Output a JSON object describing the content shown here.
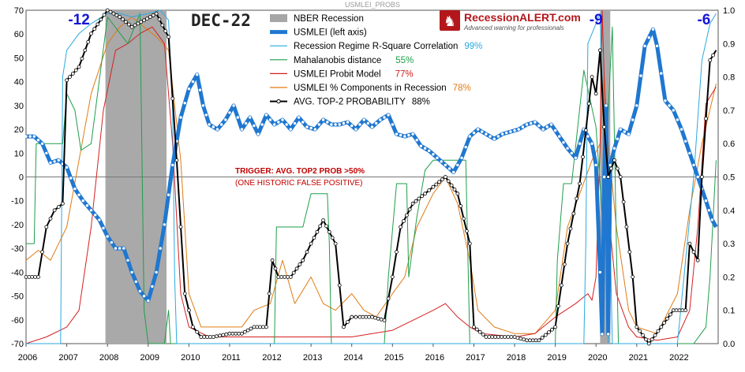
{
  "chart_data": {
    "type": "line",
    "title": "USMLEI_PROBS",
    "date_label": "DEC-22",
    "left_axis": {
      "range": [
        -70,
        70
      ],
      "ticks": [
        -70,
        -60,
        -50,
        -40,
        -30,
        -20,
        -10,
        0,
        10,
        20,
        30,
        40,
        50,
        60,
        70
      ]
    },
    "right_axis": {
      "range": [
        0,
        1.0
      ],
      "ticks": [
        "0.0",
        "0.1",
        "0.2",
        "0.3",
        "0.4",
        "0.5",
        "0.6",
        "0.7",
        "0.8",
        "0.9",
        "1.0"
      ]
    },
    "x_axis": {
      "range": [
        2006.0,
        2023.0
      ],
      "ticks": [
        "2006",
        "2007",
        "2008",
        "2009",
        "2010",
        "2011",
        "2012",
        "2013",
        "2014",
        "2015",
        "2016",
        "2017",
        "2018",
        "2019",
        "2020",
        "2021",
        "2022"
      ]
    },
    "recessions": [
      {
        "start": 2007.95,
        "end": 2009.45
      },
      {
        "start": 2020.1,
        "end": 2020.35
      }
    ],
    "big_labels": [
      {
        "text": "-12",
        "x": 2007.3,
        "color": "#1515d8"
      },
      {
        "text": "-9",
        "x": 2020.0,
        "color": "#1515d8"
      },
      {
        "text": "-6",
        "x": 2022.65,
        "color": "#1515d8"
      }
    ],
    "trigger": {
      "line1": "TRIGGER: AVG. TOP2 PROB >50%",
      "line2": "(ONE HISTORIC FALSE POSITIVE)",
      "color": "#c00000"
    },
    "brand": {
      "name": "RecessionALERT.com",
      "tagline": "Advanced warning for professionals"
    },
    "legend": [
      {
        "key": "nber",
        "label": "NBER Recession",
        "value": "",
        "color": "#a6a6a6",
        "value_color": "#000"
      },
      {
        "key": "usmlei",
        "label": "USMLEI (left axis)",
        "value": "",
        "color": "#1f77d0",
        "value_color": "#000"
      },
      {
        "key": "rsq",
        "label": "Recession Regime R-Square Correlation",
        "value": "99%",
        "color": "#2aa9e0",
        "value_color": "#2aa9e0"
      },
      {
        "key": "maha",
        "label": "Mahalanobis distance",
        "value": "55%",
        "color": "#1f9e4a",
        "value_color": "#1f9e4a"
      },
      {
        "key": "probit",
        "label": "USMLEI Probit Model",
        "value": "77%",
        "color": "#d42020",
        "value_color": "#d42020"
      },
      {
        "key": "comp",
        "label": "USMLEI % Components in Recession",
        "value": "78%",
        "color": "#e07b14",
        "value_color": "#e07b14"
      },
      {
        "key": "avg",
        "label": "AVG. TOP-2 PROBABILITY",
        "value": "88%",
        "color": "#000000",
        "value_color": "#000"
      }
    ],
    "series": [
      {
        "key": "usmlei",
        "axis": "left",
        "color": "#1f77d0",
        "x": [
          2006.0,
          2006.2,
          2006.4,
          2006.6,
          2006.8,
          2007.0,
          2007.2,
          2007.4,
          2007.6,
          2007.8,
          2008.0,
          2008.2,
          2008.4,
          2008.6,
          2008.8,
          2009.0,
          2009.2,
          2009.4,
          2009.6,
          2009.8,
          2010.0,
          2010.2,
          2010.35,
          2010.5,
          2010.7,
          2010.9,
          2011.1,
          2011.3,
          2011.5,
          2011.7,
          2011.9,
          2012.1,
          2012.3,
          2012.5,
          2012.7,
          2012.9,
          2013.1,
          2013.3,
          2013.5,
          2013.7,
          2013.9,
          2014.1,
          2014.3,
          2014.5,
          2014.7,
          2014.9,
          2015.1,
          2015.3,
          2015.5,
          2015.7,
          2015.9,
          2016.1,
          2016.3,
          2016.5,
          2016.7,
          2016.9,
          2017.1,
          2017.3,
          2017.5,
          2017.7,
          2017.9,
          2018.1,
          2018.3,
          2018.5,
          2018.7,
          2018.9,
          2019.1,
          2019.3,
          2019.5,
          2019.7,
          2019.9,
          2020.0,
          2020.1,
          2020.15,
          2020.2,
          2020.25,
          2020.3,
          2020.35,
          2020.45,
          2020.6,
          2020.8,
          2021.0,
          2021.2,
          2021.4,
          2021.5,
          2021.7,
          2021.9,
          2022.1,
          2022.3,
          2022.5,
          2022.7,
          2022.85,
          2022.95
        ],
        "y": [
          17,
          17,
          14,
          6,
          7,
          4,
          -5,
          -10,
          -14,
          -18,
          -25,
          -30,
          -30,
          -40,
          -48,
          -52,
          -40,
          -20,
          5,
          25,
          37,
          43,
          30,
          22,
          20,
          24,
          30,
          20,
          25,
          18,
          26,
          22,
          24,
          20,
          25,
          21,
          20,
          24,
          22,
          22,
          23,
          20,
          24,
          21,
          24,
          26,
          18,
          17,
          18,
          13,
          11,
          8,
          5,
          2,
          8,
          17,
          20,
          18,
          16,
          18,
          19,
          20,
          22,
          23,
          20,
          22,
          17,
          12,
          8,
          20,
          14,
          5,
          -40,
          -66,
          0,
          30,
          -66,
          5,
          12,
          20,
          18,
          30,
          55,
          62,
          55,
          32,
          28,
          20,
          10,
          0,
          -10,
          -18,
          -21
        ]
      },
      {
        "key": "rsq",
        "axis": "right",
        "color": "#2aa9e0",
        "x": [
          2006.0,
          2006.6,
          2006.85,
          2006.9,
          2007.0,
          2007.3,
          2007.6,
          2008.0,
          2008.3,
          2008.6,
          2009.0,
          2009.3,
          2009.5,
          2009.6,
          2009.65,
          2009.7,
          2013.0,
          2019.7,
          2019.75,
          2019.8,
          2020.0,
          2020.1,
          2020.2,
          2020.3,
          2020.35,
          2020.4,
          2020.7,
          2022.0,
          2022.4,
          2022.6,
          2022.8,
          2022.95
        ],
        "y": [
          0.0,
          0.0,
          0.0,
          0.8,
          0.88,
          0.93,
          0.96,
          0.99,
          0.99,
          0.98,
          0.99,
          1.0,
          0.97,
          0.7,
          0.2,
          0.0,
          0.0,
          0.0,
          0.3,
          0.9,
          0.96,
          0.99,
          0.6,
          0.0,
          0.3,
          0.0,
          0.0,
          0.0,
          0.5,
          0.85,
          0.96,
          0.99
        ]
      },
      {
        "key": "maha",
        "axis": "right",
        "color": "#1f9e4a",
        "x": [
          2006.0,
          2006.2,
          2006.25,
          2006.4,
          2006.9,
          2007.0,
          2007.2,
          2007.35,
          2007.6,
          2008.0,
          2008.5,
          2008.8,
          2008.9,
          2009.0,
          2009.3,
          2009.4,
          2009.5,
          2009.55,
          2009.6,
          2012.1,
          2012.15,
          2012.8,
          2013.0,
          2013.1,
          2013.2,
          2013.4,
          2013.45,
          2013.5,
          2014.5,
          2014.8,
          2014.9,
          2015.1,
          2015.35,
          2015.4,
          2015.6,
          2015.8,
          2016.0,
          2016.8,
          2016.9,
          2017.0,
          2019.0,
          2019.05,
          2019.2,
          2019.4,
          2019.7,
          2020.0,
          2020.2,
          2020.3,
          2020.4,
          2020.5,
          2020.55,
          2022.0,
          2022.4,
          2022.7,
          2022.8,
          2022.95
        ],
        "y": [
          0.3,
          0.3,
          0.6,
          0.6,
          0.6,
          0.75,
          0.7,
          0.58,
          0.6,
          0.98,
          0.9,
          0.99,
          0.1,
          0.0,
          0.0,
          0.0,
          0.1,
          0.0,
          0.0,
          0.0,
          0.35,
          0.35,
          0.45,
          0.45,
          0.45,
          0.45,
          0.3,
          0.0,
          0.0,
          0.0,
          0.2,
          0.48,
          0.48,
          0.2,
          0.38,
          0.52,
          0.55,
          0.55,
          0.0,
          0.0,
          0.0,
          0.25,
          0.48,
          0.48,
          0.82,
          0.65,
          0.3,
          0.7,
          0.95,
          0.3,
          0.0,
          0.0,
          0.0,
          0.05,
          0.2,
          0.55
        ]
      },
      {
        "key": "probit",
        "axis": "right",
        "color": "#d42020",
        "x": [
          2006.0,
          2006.5,
          2007.0,
          2007.3,
          2007.6,
          2007.9,
          2008.2,
          2008.5,
          2008.8,
          2009.1,
          2009.4,
          2009.6,
          2009.8,
          2010.0,
          2010.5,
          2011.0,
          2012.0,
          2013.0,
          2014.0,
          2015.0,
          2015.5,
          2016.0,
          2016.3,
          2016.6,
          2016.9,
          2017.2,
          2018.0,
          2018.5,
          2019.0,
          2019.5,
          2019.8,
          2019.9,
          2020.0,
          2020.1,
          2020.15,
          2020.3,
          2020.5,
          2020.8,
          2021.0,
          2021.5,
          2022.0,
          2022.3,
          2022.5,
          2022.7,
          2022.95
        ],
        "y": [
          0.0,
          0.02,
          0.05,
          0.1,
          0.35,
          0.7,
          0.88,
          0.9,
          0.93,
          0.95,
          0.9,
          0.6,
          0.15,
          0.05,
          0.02,
          0.02,
          0.02,
          0.02,
          0.02,
          0.04,
          0.07,
          0.1,
          0.12,
          0.08,
          0.05,
          0.03,
          0.02,
          0.03,
          0.08,
          0.12,
          0.15,
          0.13,
          0.2,
          0.6,
          1.0,
          0.4,
          0.15,
          0.05,
          0.02,
          0.01,
          0.02,
          0.1,
          0.35,
          0.72,
          0.77
        ]
      },
      {
        "key": "comp",
        "axis": "right",
        "color": "#e07b14",
        "x": [
          2006.0,
          2006.3,
          2006.6,
          2007.0,
          2007.3,
          2007.6,
          2008.0,
          2008.3,
          2008.6,
          2008.9,
          2009.2,
          2009.5,
          2009.8,
          2010.0,
          2010.3,
          2010.6,
          2011.0,
          2011.3,
          2011.6,
          2012.0,
          2012.3,
          2012.6,
          2013.0,
          2013.3,
          2013.6,
          2014.0,
          2014.3,
          2014.6,
          2015.0,
          2015.3,
          2015.6,
          2016.0,
          2016.3,
          2016.6,
          2016.9,
          2017.1,
          2017.5,
          2018.0,
          2018.5,
          2019.0,
          2019.3,
          2019.6,
          2019.9,
          2020.1,
          2020.2,
          2020.3,
          2020.5,
          2020.8,
          2021.0,
          2021.5,
          2022.0,
          2022.3,
          2022.6,
          2022.95
        ],
        "y": [
          0.25,
          0.28,
          0.25,
          0.35,
          0.55,
          0.75,
          0.9,
          0.95,
          0.98,
          0.95,
          0.92,
          0.88,
          0.55,
          0.15,
          0.05,
          0.05,
          0.05,
          0.05,
          0.1,
          0.12,
          0.25,
          0.12,
          0.2,
          0.12,
          0.1,
          0.15,
          0.1,
          0.08,
          0.15,
          0.2,
          0.35,
          0.45,
          0.5,
          0.42,
          0.25,
          0.1,
          0.05,
          0.03,
          0.03,
          0.1,
          0.35,
          0.45,
          0.55,
          0.6,
          0.8,
          0.6,
          0.35,
          0.1,
          0.05,
          0.03,
          0.15,
          0.4,
          0.6,
          0.78
        ]
      },
      {
        "key": "avg",
        "axis": "right",
        "color": "#000000",
        "x": [
          2006.0,
          2006.3,
          2006.5,
          2006.7,
          2006.9,
          2007.0,
          2007.3,
          2007.6,
          2008.0,
          2008.3,
          2008.6,
          2008.9,
          2009.2,
          2009.5,
          2009.7,
          2009.9,
          2010.1,
          2010.3,
          2010.6,
          2011.0,
          2011.3,
          2011.6,
          2011.9,
          2012.05,
          2012.2,
          2012.5,
          2012.8,
          2013.0,
          2013.3,
          2013.6,
          2013.8,
          2014.0,
          2014.2,
          2014.5,
          2014.8,
          2015.0,
          2015.2,
          2015.5,
          2015.8,
          2016.0,
          2016.3,
          2016.6,
          2016.9,
          2017.0,
          2017.3,
          2017.6,
          2018.0,
          2018.3,
          2018.6,
          2019.0,
          2019.3,
          2019.6,
          2019.9,
          2020.0,
          2020.1,
          2020.2,
          2020.3,
          2020.45,
          2020.6,
          2020.9,
          2021.0,
          2021.3,
          2021.6,
          2021.9,
          2022.2,
          2022.3,
          2022.5,
          2022.6,
          2022.8,
          2022.95
        ],
        "y": [
          0.2,
          0.2,
          0.35,
          0.4,
          0.42,
          0.79,
          0.83,
          0.93,
          1.0,
          0.98,
          0.95,
          0.97,
          0.99,
          0.92,
          0.55,
          0.15,
          0.05,
          0.02,
          0.02,
          0.03,
          0.03,
          0.05,
          0.05,
          0.25,
          0.2,
          0.2,
          0.25,
          0.3,
          0.37,
          0.3,
          0.05,
          0.08,
          0.08,
          0.08,
          0.07,
          0.2,
          0.35,
          0.42,
          0.45,
          0.47,
          0.5,
          0.45,
          0.3,
          0.05,
          0.02,
          0.02,
          0.02,
          0.01,
          0.01,
          0.05,
          0.3,
          0.48,
          0.8,
          0.75,
          0.88,
          0.65,
          0.5,
          0.55,
          0.5,
          0.2,
          0.05,
          0.0,
          0.05,
          0.1,
          0.1,
          0.3,
          0.25,
          0.5,
          0.85,
          0.88
        ]
      }
    ]
  }
}
